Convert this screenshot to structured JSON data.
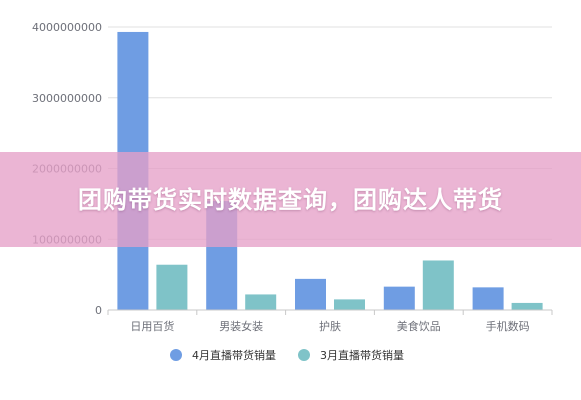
{
  "banner": {
    "title": "团购带货实时数据查询，团购达人带货"
  },
  "colors": {
    "series_april": "#6f9de3",
    "series_march": "#7fc3c8",
    "grid": "#e0e0e0",
    "axis": "#c8c8c8"
  },
  "chart_data": {
    "type": "bar",
    "categories": [
      "日用百货",
      "男装女装",
      "护肤",
      "美食饮品",
      "手机数码"
    ],
    "series": [
      {
        "name": "4月直播带货销量",
        "values": [
          3930000000,
          1540000000,
          440000000,
          330000000,
          320000000
        ]
      },
      {
        "name": "3月直播带货销量",
        "values": [
          640000000,
          220000000,
          150000000,
          700000000,
          100000000
        ]
      }
    ],
    "y_ticks": [
      "0",
      "1000000000",
      "2000000000",
      "3000000000",
      "4000000000"
    ],
    "ylim": [
      0,
      4000000000
    ],
    "title": "",
    "xlabel": "",
    "ylabel": "",
    "grid": true,
    "legend_position": "bottom"
  }
}
